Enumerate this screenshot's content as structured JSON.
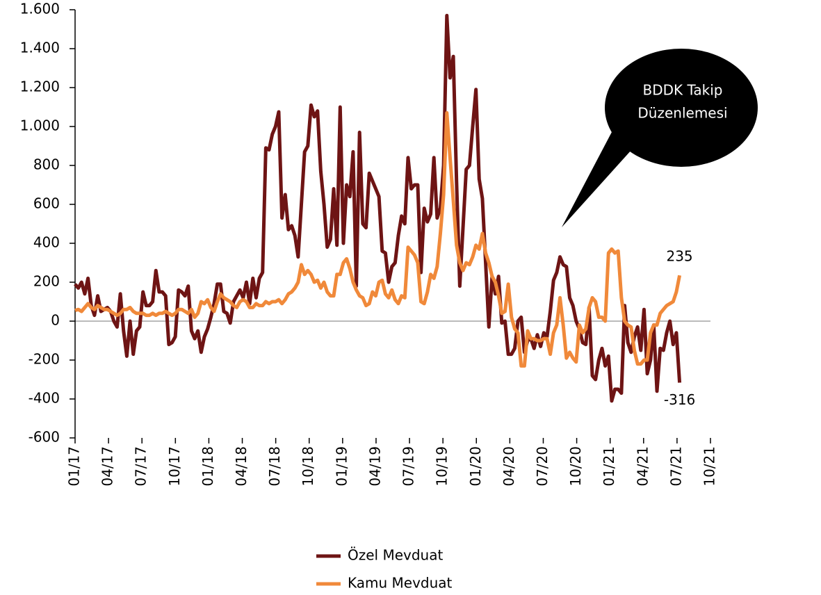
{
  "chart_data": {
    "type": "line",
    "annotation": [
      "BDDK Takip",
      "Düzenlemesi"
    ],
    "xlim": [
      0,
      57
    ],
    "xticks": [
      {
        "value": 0,
        "label": "01/17"
      },
      {
        "value": 3,
        "label": "04/17"
      },
      {
        "value": 6,
        "label": "07/17"
      },
      {
        "value": 9,
        "label": "10/17"
      },
      {
        "value": 12,
        "label": "01/18"
      },
      {
        "value": 15,
        "label": "04/18"
      },
      {
        "value": 18,
        "label": "07/18"
      },
      {
        "value": 21,
        "label": "10/18"
      },
      {
        "value": 24,
        "label": "01/19"
      },
      {
        "value": 27,
        "label": "04/19"
      },
      {
        "value": 30,
        "label": "07/19"
      },
      {
        "value": 33,
        "label": "10/19"
      },
      {
        "value": 36,
        "label": "01/20"
      },
      {
        "value": 39,
        "label": "04/20"
      },
      {
        "value": 42,
        "label": "07/20"
      },
      {
        "value": 45,
        "label": "10/20"
      },
      {
        "value": 48,
        "label": "01/21"
      },
      {
        "value": 51,
        "label": "04/21"
      },
      {
        "value": 54,
        "label": "07/21"
      },
      {
        "value": 57,
        "label": "10/21"
      }
    ],
    "ylim": [
      -600,
      1600
    ],
    "yticks": [
      -600,
      -400,
      -200,
      0,
      200,
      400,
      600,
      800,
      {
        "value": 1000,
        "label": "1.000"
      },
      {
        "value": 1200,
        "label": "1.200"
      },
      {
        "value": 1400,
        "label": "1.400"
      },
      {
        "value": 1600,
        "label": "1.600"
      }
    ],
    "x": [
      0,
      0.29,
      0.58,
      0.87,
      1.16,
      1.45,
      1.74,
      2.03,
      2.32,
      2.61,
      2.9,
      3.19,
      3.48,
      3.77,
      4.06,
      4.35,
      4.64,
      4.93,
      5.22,
      5.51,
      5.8,
      6.09,
      6.38,
      6.67,
      6.96,
      7.25,
      7.54,
      7.83,
      8.12,
      8.41,
      8.7,
      8.99,
      9.28,
      9.57,
      9.86,
      10.15,
      10.44,
      10.73,
      11.02,
      11.31,
      11.6,
      11.89,
      12.18,
      12.47,
      12.76,
      13.05,
      13.34,
      13.63,
      13.92,
      14.21,
      14.5,
      14.79,
      15.08,
      15.37,
      15.66,
      15.95,
      16.24,
      16.53,
      16.82,
      17.11,
      17.4,
      17.69,
      17.98,
      18.27,
      18.56,
      18.85,
      19.14,
      19.43,
      19.72,
      20.01,
      20.3,
      20.59,
      20.88,
      21.17,
      21.46,
      21.75,
      22.04,
      22.33,
      22.62,
      22.91,
      23.2,
      23.49,
      23.78,
      24.07,
      24.36,
      24.65,
      24.94,
      25.23,
      25.52,
      25.81,
      26.1,
      26.39,
      26.68,
      26.97,
      27.26,
      27.55,
      27.84,
      28.13,
      28.42,
      28.71,
      29,
      29.29,
      29.58,
      29.87,
      30.16,
      30.45,
      30.74,
      31.03,
      31.32,
      31.61,
      31.9,
      32.19,
      32.48,
      32.77,
      33.06,
      33.35,
      33.64,
      33.93,
      34.22,
      34.51,
      34.8,
      35.09,
      35.38,
      35.67,
      35.96,
      36.25,
      36.54,
      36.83,
      37.12,
      37.41,
      37.7,
      37.99,
      38.28,
      38.57,
      38.86,
      39.15,
      39.44,
      39.73,
      40.02,
      40.31,
      40.6,
      40.89,
      41.18,
      41.47,
      41.76,
      42.05,
      42.34,
      42.63,
      42.92,
      43.21,
      43.5,
      43.79,
      44.08,
      44.37,
      44.66,
      44.95,
      45.24,
      45.53,
      45.82,
      46.11,
      46.4,
      46.69,
      46.98,
      47.27,
      47.56,
      47.85,
      48.14,
      48.43,
      48.72,
      49.01,
      49.3,
      49.59,
      49.88,
      50.17,
      50.46,
      50.75,
      51.04,
      51.33,
      51.62,
      51.91,
      52.2,
      52.49,
      52.78,
      53.07,
      53.36,
      53.65,
      53.94,
      54.23
    ],
    "series": [
      {
        "name": "Özel Mevduat",
        "color": "#6e1414",
        "values": [
          190,
          170,
          200,
          140,
          220,
          80,
          30,
          130,
          50,
          60,
          70,
          50,
          0,
          -30,
          140,
          -50,
          -180,
          0,
          -170,
          -50,
          -30,
          150,
          80,
          80,
          100,
          260,
          150,
          150,
          130,
          -120,
          -110,
          -80,
          160,
          150,
          130,
          180,
          -50,
          -90,
          -50,
          -160,
          -80,
          -40,
          20,
          90,
          190,
          190,
          50,
          40,
          -10,
          100,
          130,
          160,
          120,
          200,
          90,
          220,
          120,
          220,
          250,
          890,
          880,
          960,
          1000,
          1075,
          530,
          650,
          470,
          490,
          440,
          330,
          600,
          870,
          900,
          1110,
          1050,
          1080,
          770,
          600,
          380,
          420,
          680,
          390,
          1100,
          400,
          700,
          640,
          870,
          180,
          970,
          500,
          480,
          760,
          720,
          680,
          640,
          360,
          350,
          200,
          280,
          300,
          440,
          540,
          500,
          840,
          680,
          700,
          700,
          250,
          580,
          510,
          550,
          840,
          530,
          580,
          800,
          1570,
          1250,
          1360,
          720,
          180,
          480,
          780,
          800,
          1000,
          1190,
          730,
          630,
          300,
          -30,
          230,
          140,
          230,
          -10,
          0,
          -170,
          -170,
          -140,
          0,
          20,
          -160,
          -100,
          -90,
          -140,
          -70,
          -130,
          -60,
          -80,
          50,
          210,
          250,
          330,
          290,
          280,
          120,
          80,
          0,
          -40,
          -110,
          -120,
          70,
          -280,
          -300,
          -200,
          -140,
          -230,
          -180,
          -410,
          -350,
          -350,
          -370,
          80,
          -110,
          -160,
          -80,
          -30,
          -150,
          60,
          -270,
          -200,
          -20,
          -360,
          -140,
          -150,
          -60,
          0,
          -120,
          -60,
          -316
        ]
      },
      {
        "name": "Kamu Mevduat",
        "color": "#f0893a",
        "values": [
          55,
          60,
          50,
          70,
          90,
          70,
          60,
          80,
          70,
          60,
          60,
          50,
          40,
          30,
          40,
          60,
          60,
          70,
          50,
          40,
          40,
          40,
          30,
          30,
          40,
          30,
          40,
          40,
          50,
          40,
          30,
          40,
          60,
          60,
          50,
          40,
          60,
          20,
          40,
          100,
          90,
          110,
          70,
          50,
          100,
          140,
          120,
          110,
          100,
          80,
          70,
          100,
          110,
          100,
          70,
          70,
          90,
          80,
          80,
          100,
          90,
          100,
          100,
          110,
          90,
          110,
          140,
          150,
          170,
          200,
          290,
          240,
          260,
          240,
          200,
          210,
          170,
          200,
          150,
          130,
          130,
          240,
          240,
          300,
          320,
          270,
          200,
          160,
          130,
          120,
          80,
          90,
          150,
          130,
          200,
          210,
          140,
          120,
          160,
          110,
          90,
          130,
          120,
          380,
          360,
          340,
          300,
          100,
          90,
          150,
          240,
          220,
          280,
          450,
          650,
          1070,
          840,
          620,
          390,
          300,
          260,
          300,
          290,
          330,
          390,
          370,
          450,
          350,
          300,
          230,
          200,
          130,
          40,
          50,
          190,
          20,
          -40,
          -60,
          -230,
          -230,
          -50,
          -90,
          -90,
          -100,
          -100,
          -90,
          -90,
          -170,
          -60,
          -20,
          120,
          -20,
          -190,
          -160,
          -190,
          -210,
          -20,
          -60,
          -40,
          70,
          120,
          100,
          20,
          20,
          0,
          350,
          370,
          350,
          360,
          120,
          0,
          -20,
          -30,
          -150,
          -220,
          -220,
          -200,
          -200,
          -60,
          -20,
          -20,
          40,
          60,
          80,
          90,
          100,
          150,
          235
        ]
      }
    ]
  }
}
